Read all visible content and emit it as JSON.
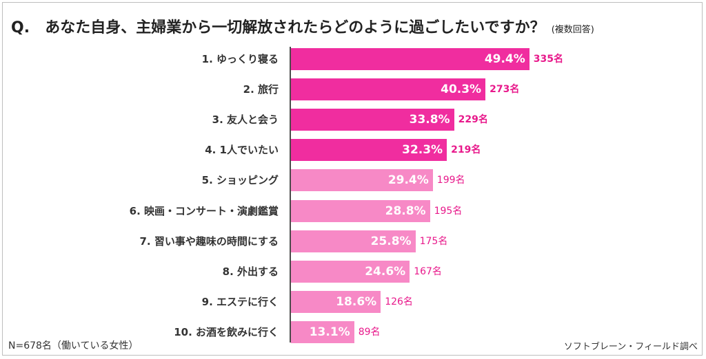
{
  "title": {
    "q": "Q.",
    "main": "あなた自身、主婦業から一切解放されたらどのように過ごしたいですか？",
    "sub": "(複数回答)"
  },
  "footer": {
    "sample": "N=678名（働いている女性）",
    "source": "ソフトブレーン・フィールド調べ"
  },
  "colors": {
    "top_bar": "#f02d9f",
    "other_bar": "#f789c6",
    "top_count": "#e8198b",
    "other_count": "#e8198b"
  },
  "chart_data": {
    "type": "bar",
    "orientation": "horizontal",
    "categories": [
      "1.  ゆっくり寝る",
      "2.  旅行",
      "3.  友人と会う",
      "4.  1人でいたい",
      "5.  ショッピング",
      "6.  映画・コンサート・演劇鑑賞",
      "7.  習い事や趣味の時間にする",
      "8.  外出する",
      "9.  エステに行く",
      "10.  お酒を飲みに行く"
    ],
    "values": [
      49.4,
      40.3,
      33.8,
      32.3,
      29.4,
      28.8,
      25.8,
      24.6,
      18.6,
      13.1
    ],
    "value_labels": [
      "49.4%",
      "40.3%",
      "33.8%",
      "32.3%",
      "29.4%",
      "28.8%",
      "25.8%",
      "24.6%",
      "18.6%",
      "13.1%"
    ],
    "counts": [
      "335名",
      "273名",
      "229名",
      "219名",
      "199名",
      "195名",
      "175名",
      "167名",
      "126名",
      "89名"
    ],
    "highlighted_top": 4
  }
}
